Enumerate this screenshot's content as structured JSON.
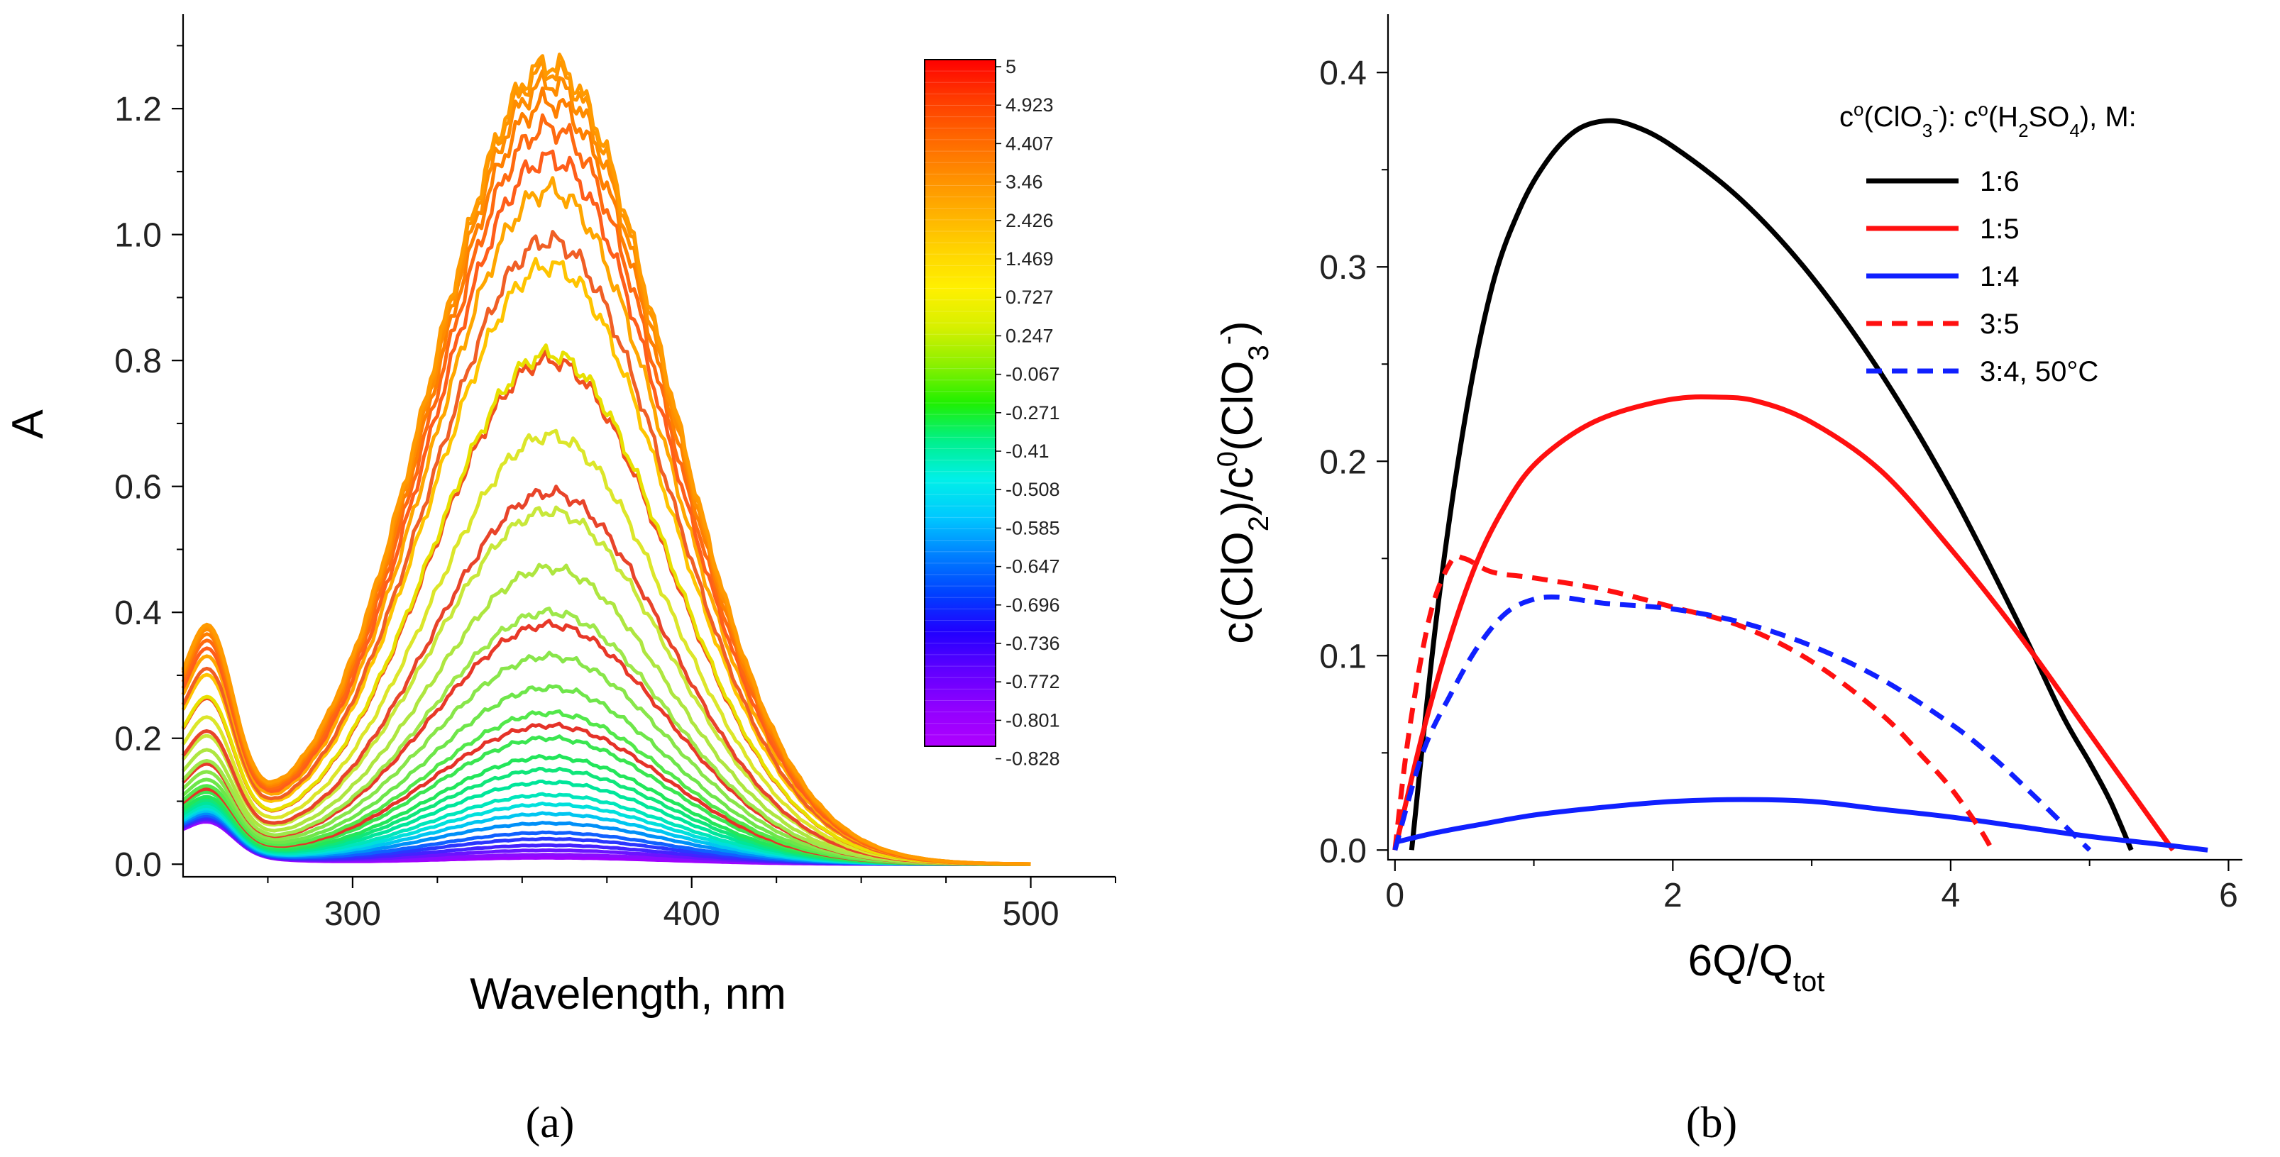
{
  "chart_data": [
    {
      "panel": "a",
      "type": "line",
      "xlabel": "Wavelength, nm",
      "ylabel": "A",
      "xlim": [
        250,
        525
      ],
      "ylim": [
        -0.02,
        1.35
      ],
      "x_ticks": [
        300,
        400,
        500
      ],
      "y_ticks": [
        "0.0",
        "0.2",
        "0.4",
        "0.6",
        "0.8",
        "1.0",
        "1.2"
      ],
      "y_tick_values": [
        0.0,
        0.2,
        0.4,
        0.6,
        0.8,
        1.0,
        1.2
      ],
      "x_range": [
        250,
        500
      ],
      "peak_wavelength": 358,
      "shoulder_wavelength": 258,
      "series_peak_values": [
        1.27,
        1.26,
        1.24,
        1.21,
        1.17,
        1.12,
        1.07,
        0.99,
        0.95,
        0.81,
        0.8,
        0.68,
        0.59,
        0.56,
        0.47,
        0.4,
        0.38,
        0.33,
        0.28,
        0.24,
        0.22,
        0.2,
        0.17,
        0.15,
        0.13,
        0.11,
        0.095,
        0.08,
        0.065,
        0.05,
        0.04,
        0.03,
        0.022,
        0.015,
        0.01
      ],
      "series_colors": [
        "#ff9a00",
        "#ff9400",
        "#ff8c00",
        "#ff7f00",
        "#ff6a10",
        "#ff5e1a",
        "#ffa600",
        "#f05f25",
        "#ffc400",
        "#e8e000",
        "#f05020",
        "#dce62a",
        "#e8442a",
        "#c8e83a",
        "#aee640",
        "#9ee84a",
        "#e83828",
        "#88e64a",
        "#6ee64a",
        "#52e84a",
        "#e53228",
        "#3ae650",
        "#22e65a",
        "#10e67a",
        "#00e69a",
        "#00e6bb",
        "#00e0dc",
        "#00c6f0",
        "#0090f8",
        "#1060ff",
        "#2a36ff",
        "#4422ff",
        "#6a14ff",
        "#8c0cff",
        "#a000ff"
      ],
      "colorbar": {
        "labels": [
          "5",
          "4.923",
          "4.407",
          "3.46",
          "2.426",
          "1.469",
          "0.727",
          "0.247",
          "-0.067",
          "-0.271",
          "-0.41",
          "-0.508",
          "-0.585",
          "-0.647",
          "-0.696",
          "-0.736",
          "-0.772",
          "-0.801",
          "-0.828"
        ],
        "colors": [
          "#ff0000",
          "#ff3a00",
          "#ff6400",
          "#ff8c00",
          "#ffb000",
          "#ffd400",
          "#fff000",
          "#d8f000",
          "#8cf000",
          "#20f000",
          "#00f08c",
          "#00f0e8",
          "#00c8ff",
          "#0080ff",
          "#0040ff",
          "#2000ff",
          "#6000ff",
          "#9000ff",
          "#b000ff"
        ]
      }
    },
    {
      "panel": "b",
      "type": "line",
      "xlabel": "6Q/Q",
      "xlabel_sub": "tot",
      "ylabel": "c(ClO",
      "ylabel_parts": [
        "c(ClO",
        "2",
        ")/c",
        "0",
        "(ClO",
        "3",
        "-",
        ")"
      ],
      "xlim": [
        -0.05,
        6.1
      ],
      "ylim": [
        -0.005,
        0.43
      ],
      "x_ticks": [
        0,
        2,
        4,
        6
      ],
      "y_ticks": [
        "0.0",
        "0.1",
        "0.2",
        "0.3",
        "0.4"
      ],
      "y_tick_values": [
        0.0,
        0.1,
        0.2,
        0.3,
        0.4
      ],
      "legend_title": "c°(ClO3-): c°(H2SO4), M:",
      "legend_title_parts": [
        "c",
        "o",
        "(ClO",
        "3",
        "-",
        "): c",
        "o",
        "(H",
        "2",
        "SO",
        "4",
        "), M:"
      ],
      "legend_position": "top-right",
      "series": [
        {
          "name": "1:6",
          "color": "#000000",
          "dash": "solid",
          "x": [
            0.12,
            0.3,
            0.5,
            0.7,
            0.9,
            1.1,
            1.3,
            1.5,
            1.7,
            2.0,
            2.5,
            3.0,
            3.5,
            4.0,
            4.5,
            4.8,
            5.0,
            5.15,
            5.3
          ],
          "y": [
            0.0,
            0.12,
            0.22,
            0.29,
            0.33,
            0.355,
            0.37,
            0.375,
            0.373,
            0.362,
            0.334,
            0.295,
            0.245,
            0.185,
            0.115,
            0.07,
            0.045,
            0.025,
            0.0
          ]
        },
        {
          "name": "1:5",
          "color": "#ff1010",
          "dash": "solid",
          "x": [
            0.0,
            0.2,
            0.4,
            0.6,
            0.8,
            1.0,
            1.3,
            1.6,
            2.0,
            2.3,
            2.6,
            3.0,
            3.5,
            4.0,
            4.5,
            5.0,
            5.3,
            5.6
          ],
          "y": [
            0.0,
            0.06,
            0.11,
            0.15,
            0.178,
            0.198,
            0.215,
            0.225,
            0.232,
            0.233,
            0.231,
            0.22,
            0.195,
            0.155,
            0.11,
            0.06,
            0.03,
            0.0
          ]
        },
        {
          "name": "1:4",
          "color": "#1020ff",
          "dash": "solid",
          "x": [
            0.0,
            0.3,
            0.6,
            1.0,
            1.5,
            2.0,
            2.5,
            3.0,
            3.5,
            4.0,
            4.5,
            5.0,
            5.5,
            5.85
          ],
          "y": [
            0.004,
            0.009,
            0.013,
            0.018,
            0.022,
            0.025,
            0.026,
            0.025,
            0.021,
            0.017,
            0.012,
            0.007,
            0.003,
            0.0
          ]
        },
        {
          "name": "3:5",
          "color": "#ff1010",
          "dash": "dashed",
          "x": [
            0.0,
            0.1,
            0.25,
            0.4,
            0.5,
            0.7,
            1.0,
            1.5,
            2.0,
            2.5,
            3.0,
            3.5,
            3.8,
            4.0,
            4.2,
            4.3
          ],
          "y": [
            0.0,
            0.06,
            0.12,
            0.148,
            0.15,
            0.143,
            0.14,
            0.134,
            0.125,
            0.115,
            0.097,
            0.07,
            0.048,
            0.032,
            0.012,
            0.0
          ]
        },
        {
          "name": "3:4, 50°C",
          "color": "#1020ff",
          "dash": "dashed",
          "x": [
            0.0,
            0.2,
            0.4,
            0.6,
            0.8,
            1.0,
            1.2,
            1.5,
            2.0,
            2.5,
            3.0,
            3.5,
            4.0,
            4.3,
            4.6,
            4.8,
            5.0
          ],
          "y": [
            0.0,
            0.05,
            0.08,
            0.105,
            0.122,
            0.129,
            0.13,
            0.127,
            0.124,
            0.117,
            0.105,
            0.088,
            0.065,
            0.048,
            0.028,
            0.014,
            0.0
          ]
        }
      ]
    }
  ],
  "panel_labels": [
    "(a)",
    "(b)"
  ]
}
